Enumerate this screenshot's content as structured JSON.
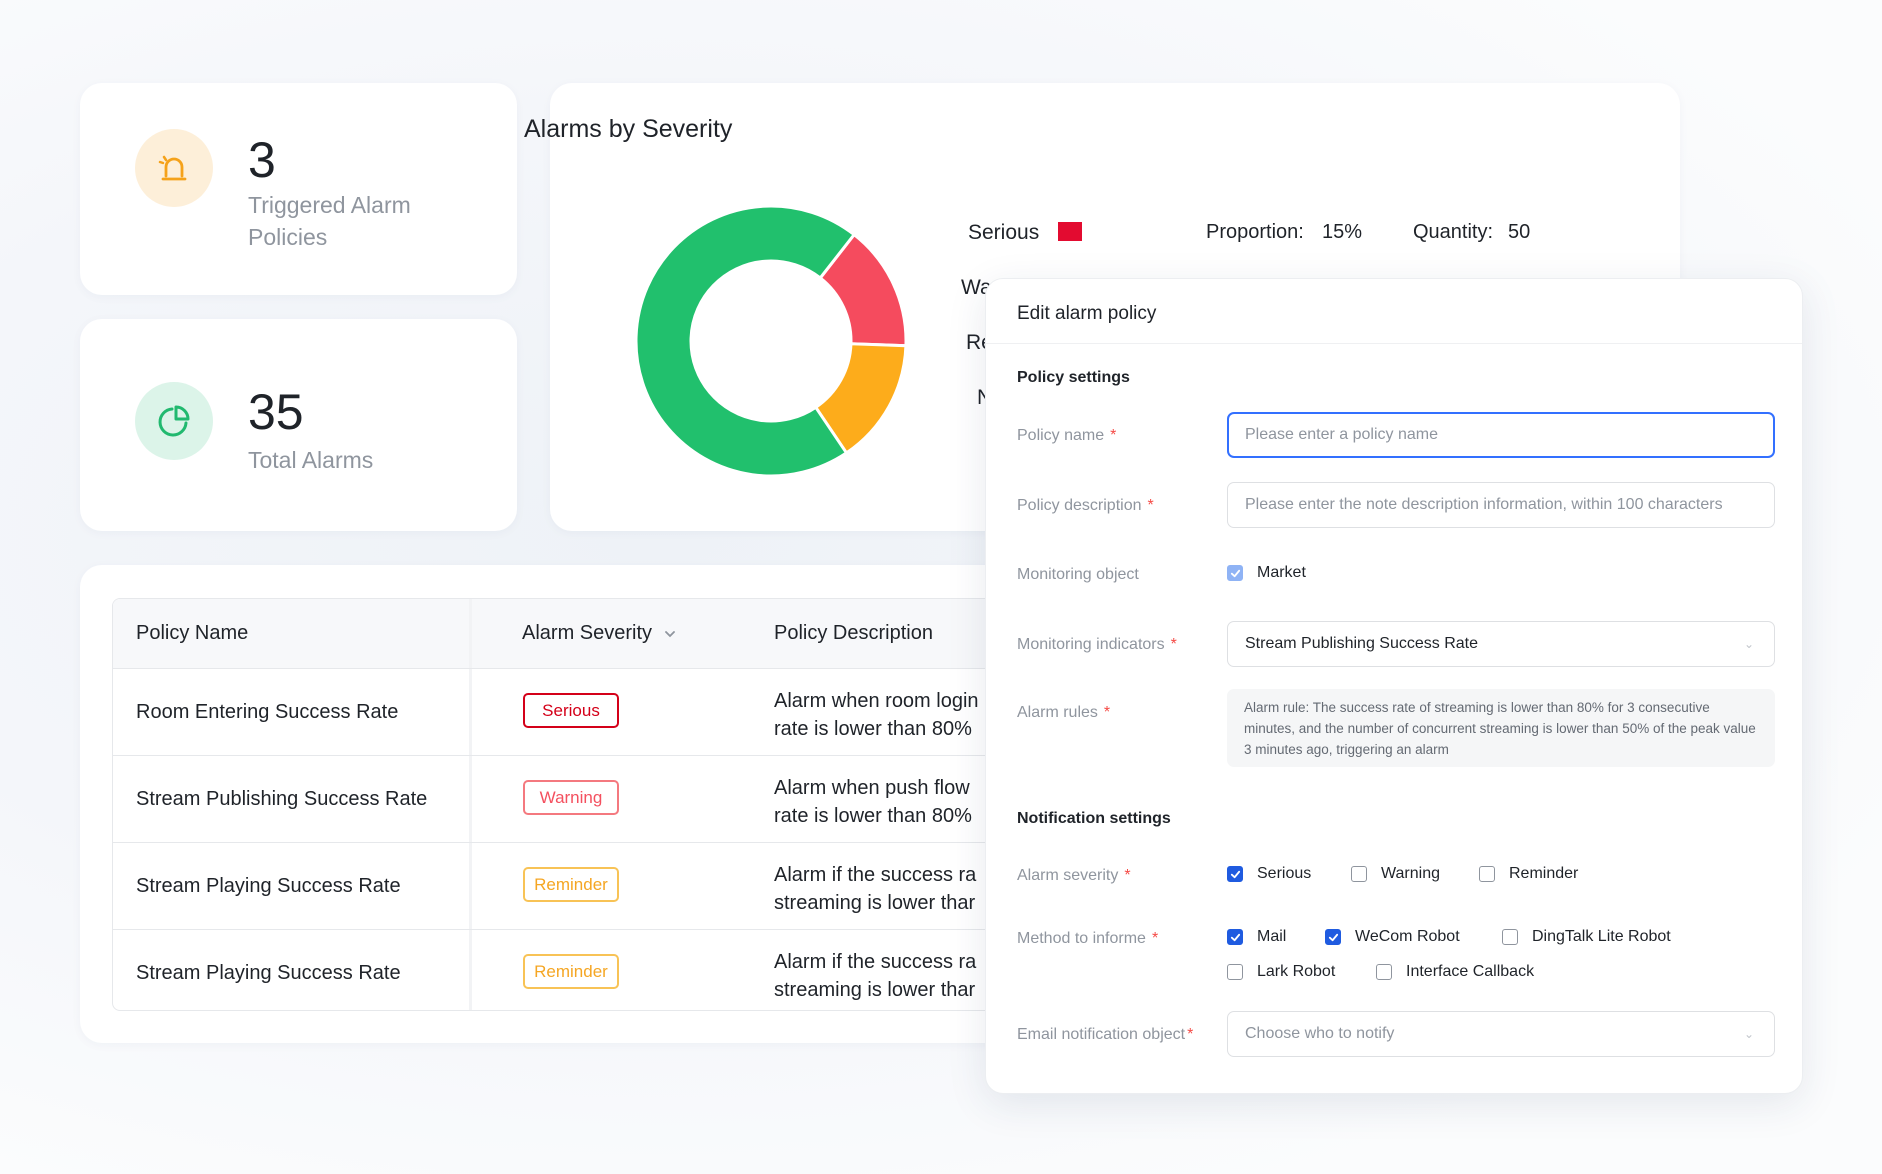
{
  "colors": {
    "serious": "#e30b30",
    "warning": "#f54b5e",
    "reminder": "#fdac1b",
    "normal": "#21c06d",
    "primary": "#3370ff",
    "alarm_icon_bg": "#fdefd9",
    "alarm_icon": "#f5a21a",
    "total_icon_bg": "#dcf4e9",
    "total_icon": "#21b96f"
  },
  "stats": {
    "triggered": {
      "value": "3",
      "label_line1": "Triggered Alarm",
      "label_line2": "Policies",
      "icon": "alarm-siren-icon"
    },
    "total": {
      "value": "35",
      "label": "Total Alarms",
      "icon": "pie-chart-icon"
    }
  },
  "chart_card": {
    "title": "Alarms by Severity",
    "legend": [
      {
        "label": "Serious",
        "color": "#e30b30",
        "proportion_label": "Proportion:",
        "proportion": "15%",
        "quantity_label": "Quantity:",
        "quantity": "50"
      },
      {
        "label": "Wa",
        "color": "#f54b5e"
      },
      {
        "label": "Re",
        "color": "#fdac1b"
      },
      {
        "label": "N",
        "color": "#21c06d"
      }
    ]
  },
  "chart_data": {
    "type": "pie",
    "title": "Alarms by Severity",
    "donut": true,
    "series": [
      {
        "name": "Warning",
        "value": 15,
        "color": "#f54b5e"
      },
      {
        "name": "Reminder",
        "value": 15,
        "color": "#fdac1b"
      },
      {
        "name": "Normal",
        "value": 70,
        "color": "#21c06d"
      }
    ]
  },
  "table": {
    "headers": {
      "policy_name": "Policy Name",
      "alarm_severity": "Alarm Severity",
      "policy_description": "Policy Description"
    },
    "rows": [
      {
        "name": "Room Entering Success Rate",
        "severity": "Serious",
        "severity_class": "serious",
        "desc_line1": "Alarm when room login",
        "desc_line2": "rate is lower than 80%"
      },
      {
        "name": "Stream Publishing Success Rate",
        "severity": "Warning",
        "severity_class": "warning",
        "desc_line1": "Alarm when push flow",
        "desc_line2": "rate is lower than 80%"
      },
      {
        "name": "Stream Playing Success Rate",
        "severity": "Reminder",
        "severity_class": "reminder",
        "desc_line1": "Alarm if the success ra",
        "desc_line2": "streaming is lower thar"
      },
      {
        "name": "Stream Playing Success Rate",
        "severity": "Reminder",
        "severity_class": "reminder",
        "desc_line1": "Alarm if the success ra",
        "desc_line2": "streaming is lower thar"
      }
    ]
  },
  "dialog": {
    "title": "Edit alarm policy",
    "policy_section": "Policy settings",
    "policy_name_label": "Policy name",
    "policy_name_placeholder": "Please enter a policy name",
    "policy_desc_label": "Policy description",
    "policy_desc_placeholder": "Please enter the note description information, within 100 characters",
    "monitoring_object_label": "Monitoring object",
    "monitoring_object_value": "Market",
    "monitoring_indicators_label": "Monitoring indicators",
    "monitoring_indicators_value": "Stream Publishing Success Rate",
    "alarm_rules_label": "Alarm rules",
    "alarm_rules_text": "Alarm rule: The success rate of streaming is lower than 80% for 3 consecutive minutes, and the number of concurrent streaming is lower than 50% of the peak value 3 minutes ago, triggering an alarm",
    "notification_section": "Notification settings",
    "alarm_severity_label": "Alarm severity",
    "severity_options": [
      {
        "label": "Serious",
        "checked": true
      },
      {
        "label": "Warning",
        "checked": false
      },
      {
        "label": "Reminder",
        "checked": false
      }
    ],
    "method_label": "Method to informe",
    "method_options": [
      {
        "label": "Mail",
        "checked": true
      },
      {
        "label": "WeCom Robot",
        "checked": true
      },
      {
        "label": "DingTalk Lite Robot",
        "checked": false
      },
      {
        "label": "Lark Robot",
        "checked": false
      },
      {
        "label": "Interface Callback",
        "checked": false
      }
    ],
    "email_label": "Email notification object",
    "email_placeholder": "Choose who to notify",
    "required_mark": "*"
  }
}
